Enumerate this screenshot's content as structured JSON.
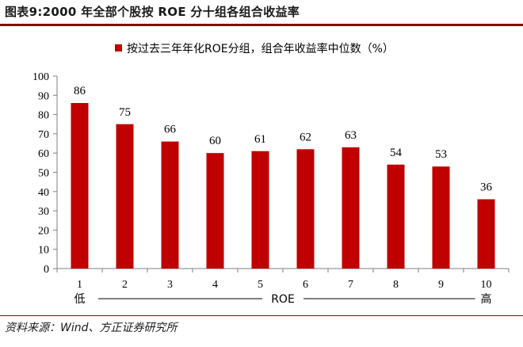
{
  "header": {
    "title": "图表9:2000 年全部个股按 ROE 分十组各组合收益率"
  },
  "footer": {
    "source": "资料来源：Wind、方正证券研究所"
  },
  "colors": {
    "bar": "#c00000",
    "rule": "#8b0000",
    "axis": "#7f7f7f"
  },
  "chart_data": {
    "type": "bar",
    "title": "",
    "categories": [
      "1",
      "2",
      "3",
      "4",
      "5",
      "6",
      "7",
      "8",
      "9",
      "10"
    ],
    "series": [
      {
        "name": "按过去三年年化ROE分组，组合年收益率中位数（%）",
        "values": [
          86,
          75,
          66,
          60,
          61,
          62,
          63,
          54,
          53,
          36
        ]
      }
    ],
    "data_labels": [
      "86",
      "75",
      "66",
      "60",
      "61",
      "62",
      "63",
      "54",
      "53",
      "36"
    ],
    "ylim": [
      0,
      100
    ],
    "yticks": [
      0,
      10,
      20,
      30,
      40,
      50,
      60,
      70,
      80,
      90,
      100
    ],
    "xlabel": "ROE",
    "x_low_label": "低",
    "x_high_label": "高",
    "grid": false,
    "legend_position": "top"
  }
}
